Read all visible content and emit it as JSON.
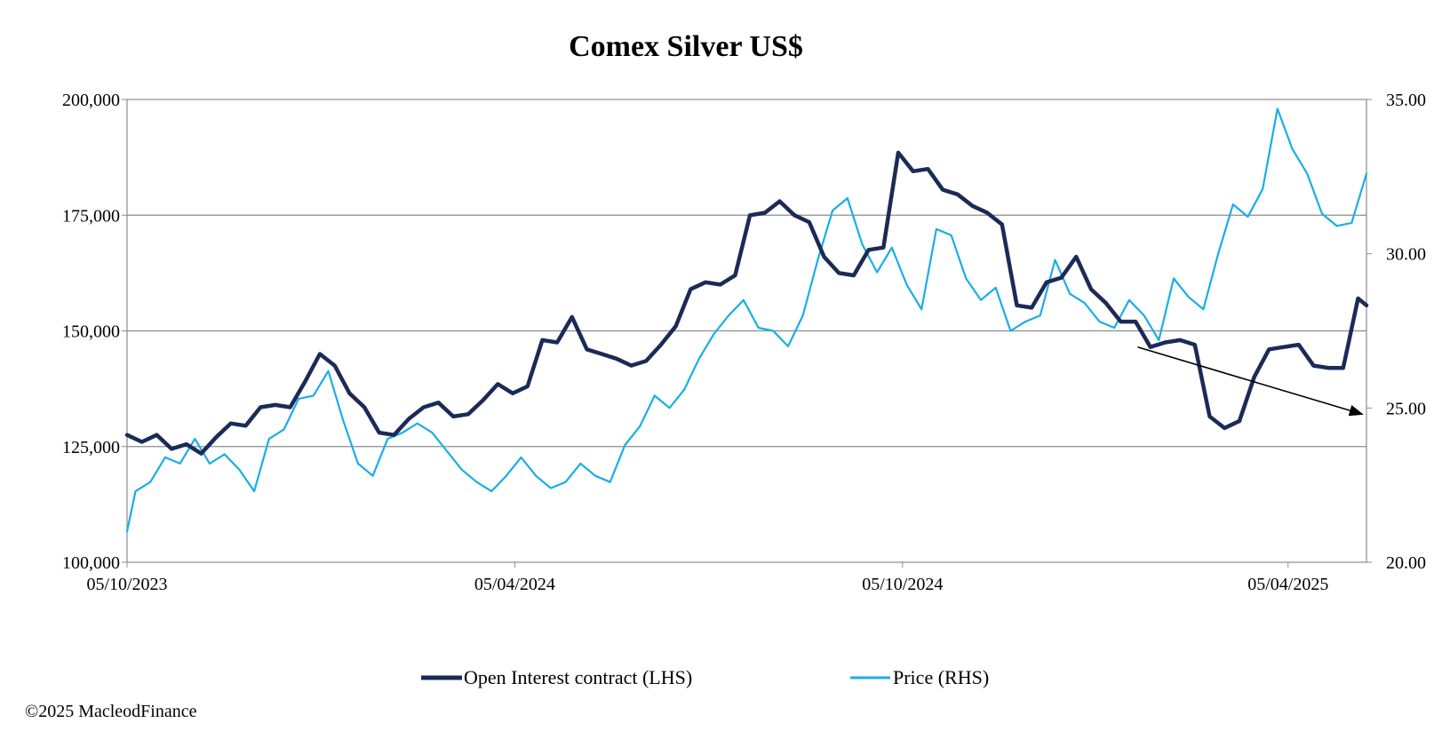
{
  "chart_data": {
    "type": "line",
    "title": "Comex Silver US$",
    "xlabel": "",
    "ylabel": "",
    "x_ticks": [
      "05/10/2023",
      "05/04/2024",
      "05/10/2024",
      "05/04/2025"
    ],
    "x_domain": [
      "2023-10-05",
      "2025-05-12"
    ],
    "y_left": {
      "ticks": [
        "100,000",
        "125,000",
        "150,000",
        "175,000",
        "200,000"
      ],
      "ylim": [
        100000,
        200000
      ]
    },
    "y_right": {
      "ticks": [
        "20.00",
        "25.00",
        "30.00",
        "35.00"
      ],
      "ylim": [
        20,
        35
      ]
    },
    "grid": "horizontal",
    "legend": "bottom-center",
    "series": [
      {
        "name": "Open Interest contract (LHS)",
        "axis": "left",
        "color": "#1b2a57",
        "points": [
          [
            "2023-10-05",
            127500
          ],
          [
            "2023-10-12",
            126000
          ],
          [
            "2023-10-19",
            127500
          ],
          [
            "2023-10-26",
            124500
          ],
          [
            "2023-11-02",
            125500
          ],
          [
            "2023-11-09",
            123500
          ],
          [
            "2023-11-16",
            127000
          ],
          [
            "2023-11-23",
            130000
          ],
          [
            "2023-11-30",
            129500
          ],
          [
            "2023-12-07",
            133500
          ],
          [
            "2023-12-14",
            134000
          ],
          [
            "2023-12-21",
            133500
          ],
          [
            "2023-12-28",
            139000
          ],
          [
            "2024-01-04",
            145000
          ],
          [
            "2024-01-11",
            142500
          ],
          [
            "2024-01-18",
            136500
          ],
          [
            "2024-01-25",
            133500
          ],
          [
            "2024-02-01",
            128000
          ],
          [
            "2024-02-08",
            127500
          ],
          [
            "2024-02-15",
            131000
          ],
          [
            "2024-02-22",
            133500
          ],
          [
            "2024-02-29",
            134500
          ],
          [
            "2024-03-07",
            131500
          ],
          [
            "2024-03-14",
            132000
          ],
          [
            "2024-03-21",
            135000
          ],
          [
            "2024-03-28",
            138500
          ],
          [
            "2024-04-04",
            136500
          ],
          [
            "2024-04-11",
            138000
          ],
          [
            "2024-04-18",
            148000
          ],
          [
            "2024-04-25",
            147500
          ],
          [
            "2024-05-02",
            153000
          ],
          [
            "2024-05-09",
            146000
          ],
          [
            "2024-05-16",
            145000
          ],
          [
            "2024-05-23",
            144000
          ],
          [
            "2024-05-30",
            142500
          ],
          [
            "2024-06-06",
            143500
          ],
          [
            "2024-06-13",
            147000
          ],
          [
            "2024-06-20",
            151000
          ],
          [
            "2024-06-27",
            159000
          ],
          [
            "2024-07-04",
            160500
          ],
          [
            "2024-07-11",
            160000
          ],
          [
            "2024-07-18",
            162000
          ],
          [
            "2024-07-25",
            175000
          ],
          [
            "2024-08-01",
            175500
          ],
          [
            "2024-08-08",
            178000
          ],
          [
            "2024-08-15",
            175000
          ],
          [
            "2024-08-22",
            173500
          ],
          [
            "2024-08-29",
            166000
          ],
          [
            "2024-09-05",
            162500
          ],
          [
            "2024-09-12",
            162000
          ],
          [
            "2024-09-19",
            167500
          ],
          [
            "2024-09-26",
            168000
          ],
          [
            "2024-10-03",
            188500
          ],
          [
            "2024-10-10",
            184500
          ],
          [
            "2024-10-17",
            185000
          ],
          [
            "2024-10-24",
            180500
          ],
          [
            "2024-10-31",
            179500
          ],
          [
            "2024-11-07",
            177000
          ],
          [
            "2024-11-14",
            175500
          ],
          [
            "2024-11-21",
            173000
          ],
          [
            "2024-11-28",
            155500
          ],
          [
            "2024-12-05",
            155000
          ],
          [
            "2024-12-12",
            160500
          ],
          [
            "2024-12-19",
            161500
          ],
          [
            "2024-12-26",
            166000
          ],
          [
            "2025-01-02",
            159000
          ],
          [
            "2025-01-09",
            156000
          ],
          [
            "2025-01-16",
            152000
          ],
          [
            "2025-01-23",
            152000
          ],
          [
            "2025-01-30",
            146500
          ],
          [
            "2025-02-06",
            147500
          ],
          [
            "2025-02-13",
            148000
          ],
          [
            "2025-02-20",
            147000
          ],
          [
            "2025-02-27",
            131500
          ],
          [
            "2025-03-06",
            129000
          ],
          [
            "2025-03-13",
            130500
          ],
          [
            "2025-03-20",
            140000
          ],
          [
            "2025-03-27",
            146000
          ],
          [
            "2025-04-03",
            146500
          ],
          [
            "2025-04-10",
            147000
          ],
          [
            "2025-04-17",
            142500
          ],
          [
            "2025-04-24",
            142000
          ],
          [
            "2025-05-01",
            142000
          ],
          [
            "2025-05-08",
            157000
          ],
          [
            "2025-05-12",
            155500
          ]
        ]
      },
      {
        "name": "Price (RHS)",
        "axis": "right",
        "color": "#19aee6",
        "points": [
          [
            "2023-10-05",
            21.0
          ],
          [
            "2023-10-09",
            22.3
          ],
          [
            "2023-10-16",
            22.6
          ],
          [
            "2023-10-23",
            23.4
          ],
          [
            "2023-10-30",
            23.2
          ],
          [
            "2023-11-06",
            24.0
          ],
          [
            "2023-11-13",
            23.2
          ],
          [
            "2023-11-20",
            23.5
          ],
          [
            "2023-11-27",
            23.0
          ],
          [
            "2023-12-04",
            22.3
          ],
          [
            "2023-12-11",
            24.0
          ],
          [
            "2023-12-18",
            24.3
          ],
          [
            "2023-12-25",
            25.3
          ],
          [
            "2024-01-01",
            25.4
          ],
          [
            "2024-01-08",
            26.2
          ],
          [
            "2024-01-15",
            24.6
          ],
          [
            "2024-01-22",
            23.2
          ],
          [
            "2024-01-29",
            22.8
          ],
          [
            "2024-02-05",
            24.0
          ],
          [
            "2024-02-12",
            24.2
          ],
          [
            "2024-02-19",
            24.5
          ],
          [
            "2024-02-26",
            24.2
          ],
          [
            "2024-03-04",
            23.6
          ],
          [
            "2024-03-11",
            23.0
          ],
          [
            "2024-03-18",
            22.6
          ],
          [
            "2024-03-25",
            22.3
          ],
          [
            "2024-04-01",
            22.8
          ],
          [
            "2024-04-08",
            23.4
          ],
          [
            "2024-04-15",
            22.8
          ],
          [
            "2024-04-22",
            22.4
          ],
          [
            "2024-04-29",
            22.6
          ],
          [
            "2024-05-06",
            23.2
          ],
          [
            "2024-05-13",
            22.8
          ],
          [
            "2024-05-20",
            22.6
          ],
          [
            "2024-05-27",
            23.8
          ],
          [
            "2024-06-03",
            24.4
          ],
          [
            "2024-06-10",
            25.4
          ],
          [
            "2024-06-17",
            25.0
          ],
          [
            "2024-06-24",
            25.6
          ],
          [
            "2024-07-01",
            26.6
          ],
          [
            "2024-07-08",
            27.4
          ],
          [
            "2024-07-15",
            28.0
          ],
          [
            "2024-07-22",
            28.5
          ],
          [
            "2024-07-29",
            27.6
          ],
          [
            "2024-08-05",
            27.5
          ],
          [
            "2024-08-12",
            27.0
          ],
          [
            "2024-08-19",
            28.0
          ],
          [
            "2024-08-26",
            29.8
          ],
          [
            "2024-09-02",
            31.4
          ],
          [
            "2024-09-09",
            31.8
          ],
          [
            "2024-09-16",
            30.3
          ],
          [
            "2024-09-23",
            29.4
          ],
          [
            "2024-09-30",
            30.2
          ],
          [
            "2024-10-07",
            29.0
          ],
          [
            "2024-10-14",
            28.2
          ],
          [
            "2024-10-21",
            30.8
          ],
          [
            "2024-10-28",
            30.6
          ],
          [
            "2024-11-04",
            29.2
          ],
          [
            "2024-11-11",
            28.5
          ],
          [
            "2024-11-18",
            28.9
          ],
          [
            "2024-11-25",
            27.5
          ],
          [
            "2024-12-02",
            27.8
          ],
          [
            "2024-12-09",
            28.0
          ],
          [
            "2024-12-16",
            29.8
          ],
          [
            "2024-12-23",
            28.7
          ],
          [
            "2024-12-30",
            28.4
          ],
          [
            "2025-01-06",
            27.8
          ],
          [
            "2025-01-13",
            27.6
          ],
          [
            "2025-01-20",
            28.5
          ],
          [
            "2025-01-27",
            28.0
          ],
          [
            "2025-02-03",
            27.2
          ],
          [
            "2025-02-10",
            29.2
          ],
          [
            "2025-02-17",
            28.6
          ],
          [
            "2025-02-24",
            28.2
          ],
          [
            "2025-03-03",
            30.0
          ],
          [
            "2025-03-10",
            31.6
          ],
          [
            "2025-03-17",
            31.2
          ],
          [
            "2025-03-24",
            32.1
          ],
          [
            "2025-03-31",
            34.7
          ],
          [
            "2025-04-07",
            33.4
          ],
          [
            "2025-04-14",
            32.6
          ],
          [
            "2025-04-21",
            31.3
          ],
          [
            "2025-04-28",
            30.9
          ],
          [
            "2025-05-05",
            31.0
          ],
          [
            "2025-05-12",
            32.6
          ]
        ]
      }
    ],
    "annotations": [
      {
        "type": "arrow",
        "from": [
          "2025-01-24",
          146500
        ],
        "to": [
          "2025-05-10",
          132000
        ]
      }
    ]
  },
  "footer": {
    "copyright": "©2025 MacleodFinance"
  }
}
